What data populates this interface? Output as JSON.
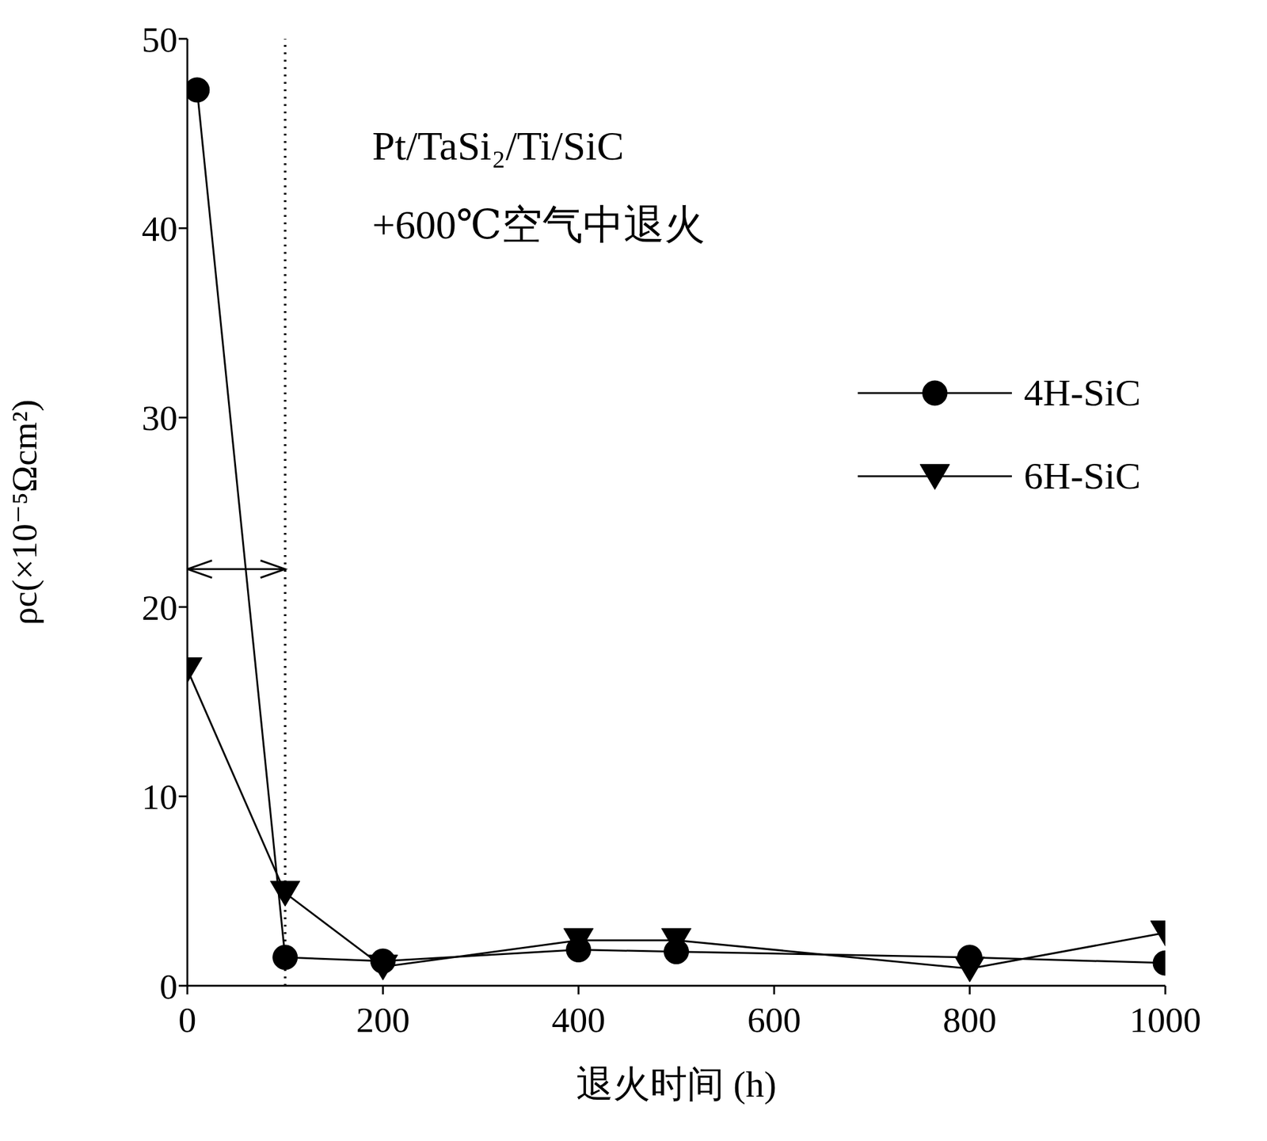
{
  "chart_data": {
    "type": "line",
    "annotations": [
      "Pt/TaSi₂/Ti/SiC",
      "+600℃空气中退火"
    ],
    "x_label": "退火时间 (h)",
    "y_label": "ρc(×10⁻⁵Ωcm²)",
    "xlim": [
      0,
      1000
    ],
    "xticks": [
      0,
      200,
      400,
      600,
      800,
      1000
    ],
    "ylim": [
      0,
      50
    ],
    "yticks": [
      0,
      10,
      20,
      30,
      40,
      50
    ],
    "grid": false,
    "legend": "right",
    "reference_line": {
      "x": 100,
      "arrow_from": 0,
      "arrow_y": 22
    },
    "series": [
      {
        "name": "4H-SiC",
        "color": "#000000",
        "marker": "circle",
        "line_style": "solid",
        "x": [
          10,
          100,
          200,
          400,
          500,
          800,
          1000
        ],
        "values": [
          47.3,
          1.5,
          1.3,
          1.9,
          1.8,
          1.5,
          1.2
        ]
      },
      {
        "name": "6H-SiC",
        "color": "#000000",
        "marker": "triangle_down",
        "line_style": "solid",
        "x": [
          0,
          100,
          200,
          400,
          500,
          800,
          1000
        ],
        "values": [
          16.7,
          4.9,
          1.0,
          2.4,
          2.4,
          0.9,
          2.8
        ]
      }
    ]
  }
}
